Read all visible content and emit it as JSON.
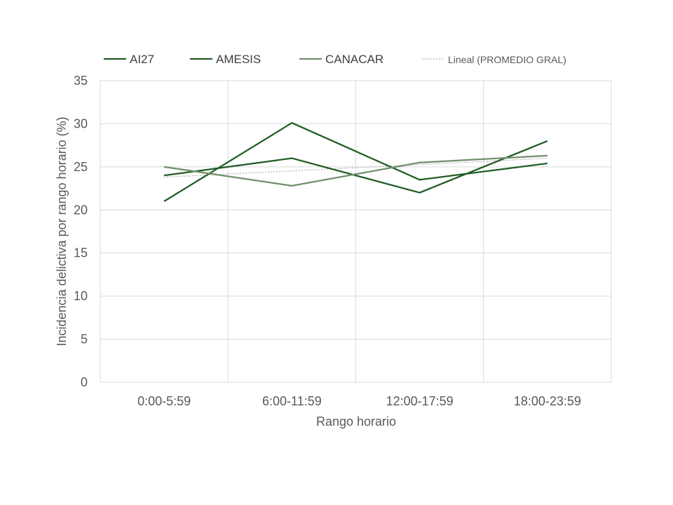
{
  "chart_data": {
    "type": "line",
    "categories": [
      "0:00-5:59",
      "6:00-11:59",
      "12:00-17:59",
      "18:00-23:59"
    ],
    "series": [
      {
        "name": "AI27",
        "values": [
          24.0,
          26.0,
          22.0,
          28.0
        ],
        "color": "#1f5a24"
      },
      {
        "name": "AMESIS",
        "values": [
          21.0,
          30.1,
          23.5,
          25.4
        ],
        "color": "#1e5e25"
      },
      {
        "name": "CANACAR",
        "values": [
          25.0,
          22.8,
          25.5,
          26.3
        ],
        "color": "#6f8f6b"
      }
    ],
    "trendline": {
      "name": "Lineal (PROMEDIO GRAL)",
      "start": 23.8,
      "end": 26.0,
      "color": "#bdbdbd"
    },
    "xlabel": "Rango horario",
    "ylabel": "Incidencia delictiva por rango horario (%)",
    "ylim": [
      0,
      35
    ],
    "yticks": [
      0,
      5,
      10,
      15,
      20,
      25,
      30,
      35
    ],
    "grid": true,
    "legend_position": "top"
  }
}
